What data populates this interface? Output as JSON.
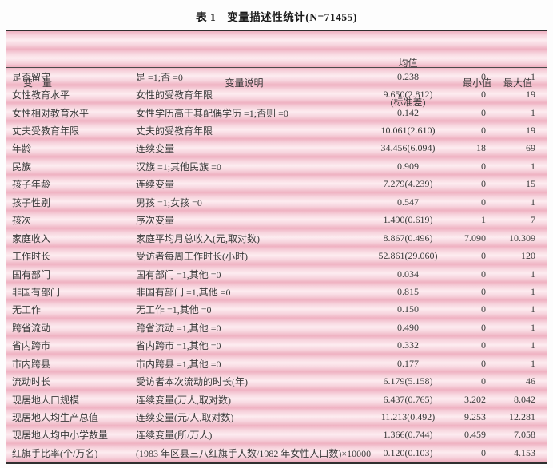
{
  "title": "表 1　变量描述性统计(N=71455)",
  "colors": {
    "band-dark": "#efb2c2",
    "band-mid": "#f7d5de",
    "band-light": "#fdecf0",
    "border-dark": "#2f2f2f",
    "text": "#3a3a3a",
    "title": "#1a1a1a"
  },
  "table": {
    "headers": {
      "variable": "变　量",
      "description": "变量说明",
      "mean_line1": "均值",
      "mean_line2": "(标准差)",
      "min": "最小值",
      "max": "最大值"
    },
    "rows": [
      [
        "是否留守",
        "是 =1;否 =0",
        "0.238",
        "0",
        "1"
      ],
      [
        "女性教育水平",
        "女性的受教育年限",
        "9.650(2.812)",
        "0",
        "19"
      ],
      [
        "女性相对教育水平",
        "女性学历高于其配偶学历 =1;否则 =0",
        "0.142",
        "0",
        "1"
      ],
      [
        "丈夫受教育年限",
        "丈夫的受教育年限",
        "10.061(2.610)",
        "0",
        "19"
      ],
      [
        "年龄",
        "连续变量",
        "34.456(6.094)",
        "18",
        "69"
      ],
      [
        "民族",
        "汉族 =1;其他民族 =0",
        "0.909",
        "0",
        "1"
      ],
      [
        "孩子年龄",
        "连续变量",
        "7.279(4.239)",
        "0",
        "15"
      ],
      [
        "孩子性别",
        "男孩 =1;女孩 =0",
        "0.547",
        "0",
        "1"
      ],
      [
        "孩次",
        "序次变量",
        "1.490(0.619)",
        "1",
        "7"
      ],
      [
        "家庭收入",
        "家庭平均月总收入(元,取对数)",
        "8.867(0.496)",
        "7.090",
        "10.309"
      ],
      [
        "工作时长",
        "受访者每周工作时长(小时)",
        "52.861(29.060)",
        "0",
        "120"
      ],
      [
        "国有部门",
        "国有部门 =1,其他 =0",
        "0.034",
        "0",
        "1"
      ],
      [
        "非国有部门",
        "非国有部门 =1,其他 =0",
        "0.815",
        "0",
        "1"
      ],
      [
        "无工作",
        "无工作 =1,其他 =0",
        "0.150",
        "0",
        "1"
      ],
      [
        "跨省流动",
        "跨省流动 =1,其他 =0",
        "0.490",
        "0",
        "1"
      ],
      [
        "省内跨市",
        "省内跨市 =1,其他 =0",
        "0.332",
        "0",
        "1"
      ],
      [
        "市内跨县",
        "市内跨县 =1,其他 =0",
        "0.177",
        "0",
        "1"
      ],
      [
        "流动时长",
        "受访者本次流动的时长(年)",
        "6.179(5.158)",
        "0",
        "46"
      ],
      [
        "现居地人口规模",
        "连续变量(万人,取对数)",
        "6.437(0.765)",
        "3.202",
        "8.042"
      ],
      [
        "现居地人均生产总值",
        "连续变量(元/人,取对数)",
        "11.213(0.492)",
        "9.253",
        "12.281"
      ],
      [
        "现居地人均中小学数量",
        "连续变量(所/万人)",
        "1.366(0.744)",
        "0.459",
        "7.058"
      ],
      [
        "红旗手比率(个/万名)",
        "(1983 年区县三八红旗手人数/1982 年女性人口数)×10000",
        "0.120(0.103)",
        "0",
        "4.153"
      ]
    ]
  }
}
